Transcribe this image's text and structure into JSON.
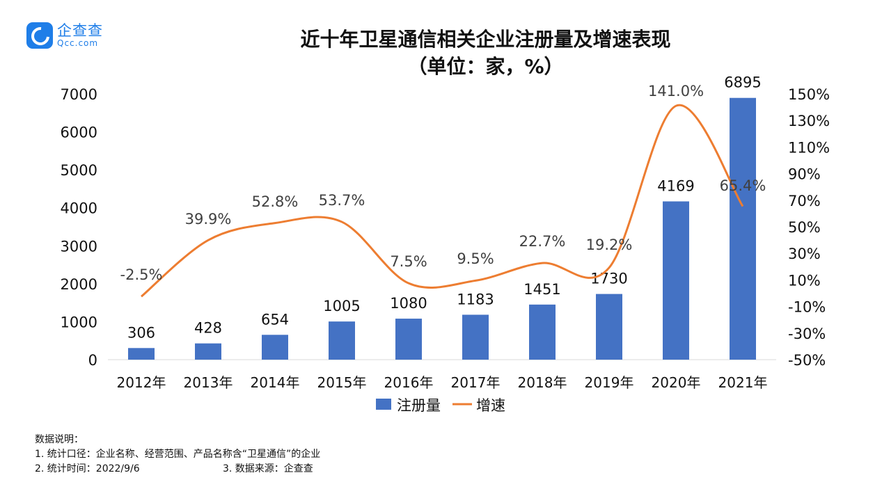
{
  "logo": {
    "name_cn": "企查查",
    "name_en": "Qcc.com"
  },
  "chart_data": {
    "type": "bar+line",
    "title": "近十年卫星通信相关企业注册量及增速表现",
    "subtitle": "（单位：家，%）",
    "categories": [
      "2012年",
      "2013年",
      "2014年",
      "2015年",
      "2016年",
      "2017年",
      "2018年",
      "2019年",
      "2020年",
      "2021年"
    ],
    "series": [
      {
        "name": "注册量",
        "type": "bar",
        "axis": "left",
        "color": "#4472c4",
        "values": [
          306,
          428,
          654,
          1005,
          1080,
          1183,
          1451,
          1730,
          4169,
          6895
        ],
        "labels": [
          "306",
          "428",
          "654",
          "1005",
          "1080",
          "1183",
          "1451",
          "1730",
          "4169",
          "6895"
        ]
      },
      {
        "name": "增速",
        "type": "line",
        "axis": "right",
        "color": "#ed7d31",
        "values": [
          -2.5,
          39.9,
          52.8,
          53.7,
          7.5,
          9.5,
          22.7,
          19.2,
          141.0,
          65.4
        ],
        "labels": [
          "-2.5%",
          "39.9%",
          "52.8%",
          "53.7%",
          "7.5%",
          "9.5%",
          "22.7%",
          "19.2%",
          "141.0%",
          "65.4%"
        ]
      }
    ],
    "y_left": {
      "range": [
        0,
        7000
      ],
      "ticks": [
        "0",
        "1000",
        "2000",
        "3000",
        "4000",
        "5000",
        "6000",
        "7000"
      ]
    },
    "y_right": {
      "range": [
        -50,
        150
      ],
      "ticks": [
        "-50%",
        "-30%",
        "-10%",
        "10%",
        "30%",
        "50%",
        "70%",
        "90%",
        "110%",
        "130%",
        "150%"
      ]
    },
    "legend": {
      "position": "bottom",
      "items": [
        "注册量",
        "增速"
      ]
    },
    "grid": false
  },
  "notes": {
    "heading": "数据说明：",
    "line1": "1. 统计口径：企业名称、经营范围、产品名称含“卫星通信”的企业",
    "line2a": "2. 统计时间：2022/9/6",
    "line2b": "3. 数据来源：企查查"
  }
}
